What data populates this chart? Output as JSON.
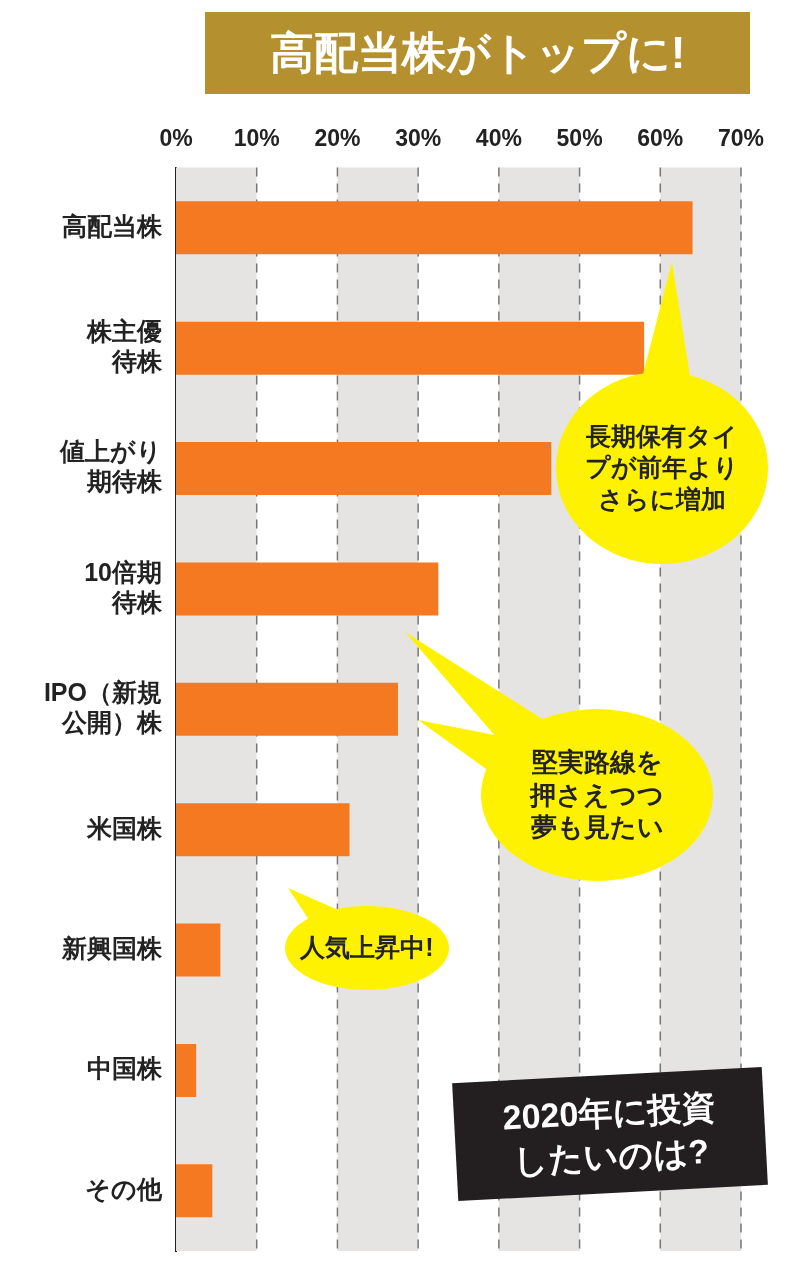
{
  "chart_data": {
    "type": "bar",
    "orientation": "horizontal",
    "title": "高配当株がトップに!",
    "subtitle": "2020年に投資したいのは?",
    "categories": [
      "高配当株",
      "株主優待株",
      "値上がり期待株",
      "10倍期待株",
      "IPO（新規公開）株",
      "米国株",
      "新興国株",
      "中国株",
      "その他"
    ],
    "values": [
      64,
      58,
      46.5,
      32.5,
      27.5,
      21.5,
      5.5,
      2.5,
      4.5
    ],
    "color": "#f47920",
    "xlim": [
      0,
      70
    ],
    "xticks": [
      {
        "value": 0,
        "label": "0%"
      },
      {
        "value": 10,
        "label": "10%"
      },
      {
        "value": 20,
        "label": "20%"
      },
      {
        "value": 30,
        "label": "30%"
      },
      {
        "value": 40,
        "label": "40%"
      },
      {
        "value": 50,
        "label": "50%"
      },
      {
        "value": 60,
        "label": "60%"
      },
      {
        "value": 70,
        "label": "70%"
      }
    ],
    "grid": true,
    "annotations": [
      "長期保有タイプが前年よりさらに増加",
      "堅実路線を押さえつつ夢も見たい",
      "人気上昇中!"
    ]
  }
}
